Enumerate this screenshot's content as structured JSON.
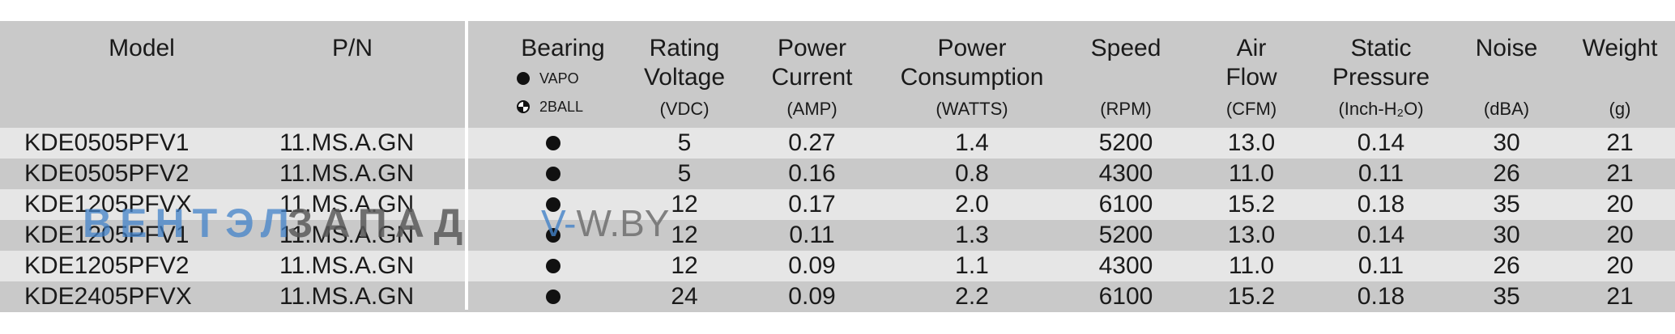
{
  "headers": {
    "model": "Model",
    "pn": "P/N",
    "bearing": "Bearing",
    "bearing_legend": [
      "VAPO",
      "2BALL"
    ],
    "voltage": [
      "Rating",
      "Voltage"
    ],
    "current": [
      "Power",
      "Current"
    ],
    "consumption": [
      "Power",
      "Consumption"
    ],
    "speed": "Speed",
    "airflow": [
      "Air",
      "Flow"
    ],
    "pressure": [
      "Static",
      "Pressure"
    ],
    "noise": "Noise",
    "weight": "Weight"
  },
  "units": {
    "voltage": "(VDC)",
    "current": "(AMP)",
    "consumption": "(WATTS)",
    "speed": "(RPM)",
    "airflow": "(CFM)",
    "pressure": "(Inch-H₂O)",
    "noise": "(dBA)",
    "weight": "(g)"
  },
  "rows": [
    {
      "model": "KDE0505PFV1",
      "pn": "11.MS.A.GN",
      "bearing": "VAPO",
      "voltage": "5",
      "current": "0.27",
      "consumption": "1.4",
      "speed": "5200",
      "airflow": "13.0",
      "pressure": "0.14",
      "noise": "30",
      "weight": "21"
    },
    {
      "model": "KDE0505PFV2",
      "pn": "11.MS.A.GN",
      "bearing": "VAPO",
      "voltage": "5",
      "current": "0.16",
      "consumption": "0.8",
      "speed": "4300",
      "airflow": "11.0",
      "pressure": "0.11",
      "noise": "26",
      "weight": "21"
    },
    {
      "model": "KDE1205PFVX",
      "pn": "11.MS.A.GN",
      "bearing": "VAPO",
      "voltage": "12",
      "current": "0.17",
      "consumption": "2.0",
      "speed": "6100",
      "airflow": "15.2",
      "pressure": "0.18",
      "noise": "35",
      "weight": "20"
    },
    {
      "model": "KDE1205PFV1",
      "pn": "11.MS.A.GN",
      "bearing": "VAPO",
      "voltage": "12",
      "current": "0.11",
      "consumption": "1.3",
      "speed": "5200",
      "airflow": "13.0",
      "pressure": "0.14",
      "noise": "30",
      "weight": "20"
    },
    {
      "model": "KDE1205PFV2",
      "pn": "11.MS.A.GN",
      "bearing": "VAPO",
      "voltage": "12",
      "current": "0.09",
      "consumption": "1.1",
      "speed": "4300",
      "airflow": "11.0",
      "pressure": "0.11",
      "noise": "26",
      "weight": "20"
    },
    {
      "model": "KDE2405PFVX",
      "pn": "11.MS.A.GN",
      "bearing": "VAPO",
      "voltage": "24",
      "current": "0.09",
      "consumption": "2.2",
      "speed": "6100",
      "airflow": "15.2",
      "pressure": "0.18",
      "noise": "35",
      "weight": "21"
    }
  ],
  "watermark": {
    "part1": "ВЕНТЭЛ",
    "part2": "ЗАПАД",
    "site_prefix": "V-",
    "site_rest": "W.BY"
  }
}
